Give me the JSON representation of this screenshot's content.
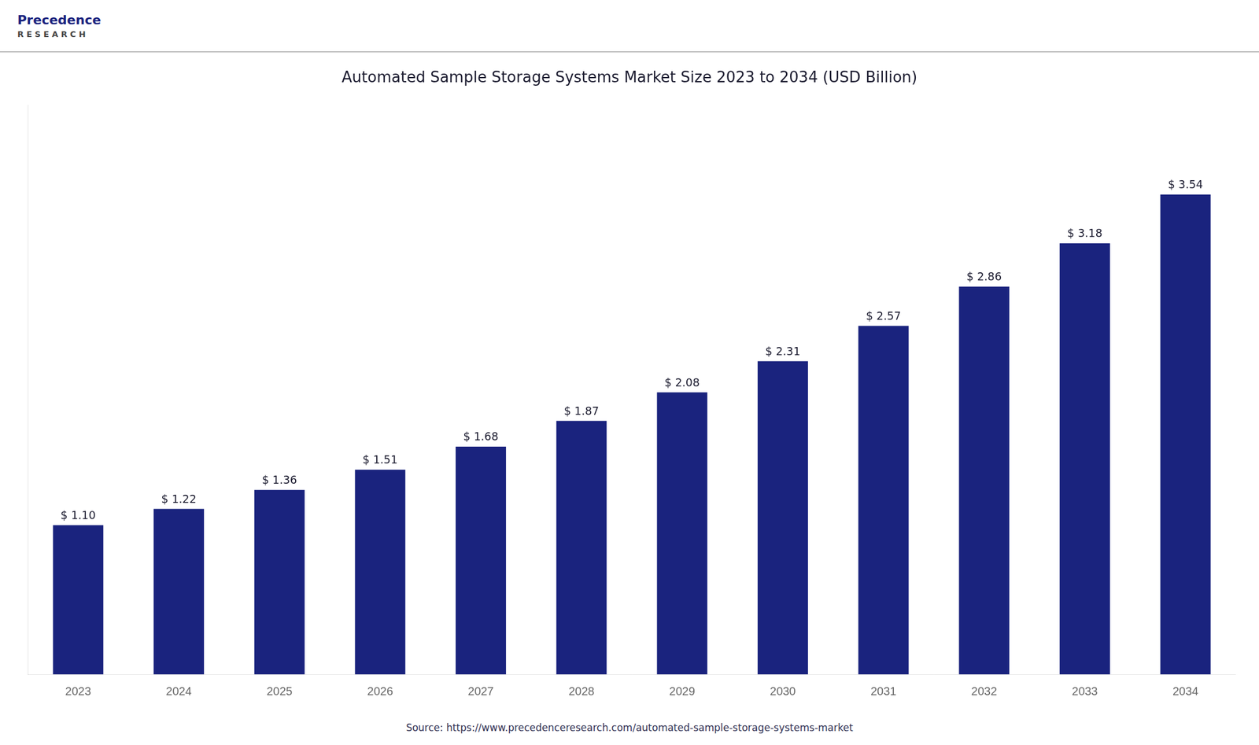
{
  "chart_data": {
    "type": "bar",
    "title": "Automated Sample Storage Systems Market Size 2023 to 2034 (USD Billion)",
    "categories": [
      "2023",
      "2024",
      "2025",
      "2026",
      "2027",
      "2028",
      "2029",
      "2030",
      "2031",
      "2032",
      "2033",
      "2034"
    ],
    "values": [
      1.1,
      1.22,
      1.36,
      1.51,
      1.68,
      1.87,
      2.08,
      2.31,
      2.57,
      2.86,
      3.18,
      3.54
    ],
    "value_labels": [
      "$ 1.10",
      "$ 1.22",
      "$ 1.36",
      "$ 1.51",
      "$ 1.68",
      "$ 1.87",
      "$ 2.08",
      "$ 2.31",
      "$ 2.57",
      "$ 2.86",
      "$ 3.18",
      "$ 3.54"
    ],
    "data_labels": true,
    "color": "#1a237e",
    "ylim": [
      0,
      4.2
    ],
    "tick_labels": "x",
    "grid": false,
    "annotations": [
      "Precedence",
      "R E S E A R C H",
      "Source: https://www.precedenceresearch.com/automated-sample-storage-systems-market"
    ]
  }
}
